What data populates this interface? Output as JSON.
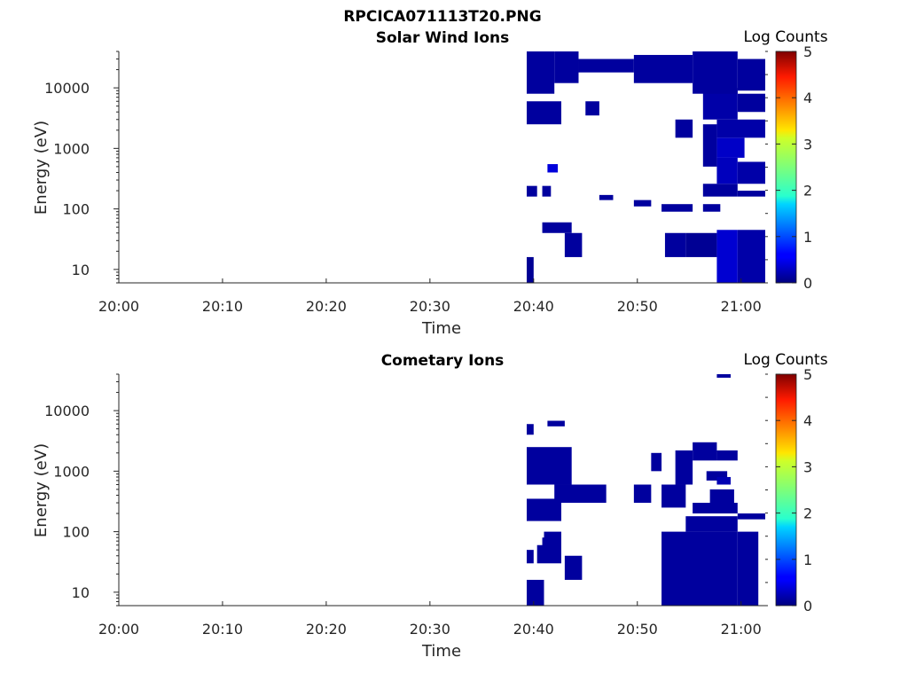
{
  "figure_title": "RPCICA071113T20.PNG",
  "chart_data": [
    {
      "type": "heatmap",
      "title": "Solar Wind Ions",
      "xlabel": "Time",
      "ylabel": "Energy (eV)",
      "y_scale": "log",
      "x_ticks": [
        "20:00",
        "20:10",
        "20:20",
        "20:30",
        "20:40",
        "20:50",
        "21:00"
      ],
      "y_ticks": [
        "10",
        "100",
        "1000",
        "10000"
      ],
      "colorbar": {
        "label": "Log Counts",
        "ticks": [
          "0",
          "1",
          "2",
          "3",
          "4",
          "5"
        ],
        "range": [
          0,
          5
        ],
        "colormap": "jet"
      },
      "cells": [
        [
          "20:39:20",
          "20:40:00",
          6,
          16,
          0.2
        ],
        [
          "20:40:50",
          "20:43:40",
          40,
          60,
          0.3
        ],
        [
          "20:43:00",
          "20:44:40",
          16,
          40,
          0.3
        ],
        [
          "20:39:20",
          "20:40:20",
          160,
          240,
          0.3
        ],
        [
          "20:40:50",
          "20:41:40",
          160,
          240,
          0.3
        ],
        [
          "20:52:20",
          "20:55:20",
          90,
          120,
          0.3
        ],
        [
          "20:54:40",
          "20:57:40",
          16,
          40,
          0.2
        ],
        [
          "20:57:40",
          "20:59:40",
          6,
          45,
          0.8
        ],
        [
          "20:59:40",
          "21:02:20",
          6,
          45,
          0.4
        ],
        [
          "20:52:40",
          "20:54:40",
          16,
          40,
          0.3
        ],
        [
          "20:56:20",
          "20:58:00",
          90,
          120,
          0.3
        ],
        [
          "20:49:40",
          "20:51:20",
          110,
          140,
          0.3
        ],
        [
          "20:56:20",
          "20:59:40",
          160,
          260,
          0.3
        ],
        [
          "20:59:40",
          "21:02:20",
          160,
          200,
          0.3
        ],
        [
          "20:57:40",
          "20:59:40",
          260,
          700,
          0.6
        ],
        [
          "20:59:40",
          "21:02:20",
          260,
          600,
          0.4
        ],
        [
          "20:57:40",
          "21:00:20",
          700,
          1500,
          0.7
        ],
        [
          "20:56:20",
          "20:57:40",
          500,
          2500,
          0.3
        ],
        [
          "20:57:40",
          "21:02:20",
          1500,
          3000,
          0.4
        ],
        [
          "20:56:20",
          "20:59:40",
          3000,
          10000,
          0.4
        ],
        [
          "20:59:40",
          "21:02:20",
          4000,
          8000,
          0.3
        ],
        [
          "20:39:20",
          "20:42:00",
          8000,
          40000,
          0.3
        ],
        [
          "20:42:00",
          "20:44:20",
          12000,
          40000,
          0.3
        ],
        [
          "20:44:20",
          "20:49:40",
          18000,
          30000,
          0.3
        ],
        [
          "20:49:40",
          "20:55:20",
          12000,
          35000,
          0.3
        ],
        [
          "20:55:20",
          "20:59:40",
          8000,
          40000,
          0.3
        ],
        [
          "20:59:40",
          "21:02:20",
          9000,
          30000,
          0.3
        ],
        [
          "20:39:20",
          "20:42:40",
          2500,
          6000,
          0.3
        ],
        [
          "20:45:00",
          "20:46:20",
          3500,
          6000,
          0.3
        ],
        [
          "20:53:40",
          "20:55:20",
          1500,
          3000,
          0.3
        ],
        [
          "20:41:20",
          "20:42:20",
          400,
          550,
          0.9
        ],
        [
          "20:46:20",
          "20:47:40",
          140,
          170,
          0.3
        ]
      ]
    },
    {
      "type": "heatmap",
      "title": "Cometary Ions",
      "xlabel": "Time",
      "ylabel": "Energy (eV)",
      "y_scale": "log",
      "x_ticks": [
        "20:00",
        "20:10",
        "20:20",
        "20:30",
        "20:40",
        "20:50",
        "21:00"
      ],
      "y_ticks": [
        "10",
        "100",
        "1000",
        "10000"
      ],
      "colorbar": {
        "label": "Log Counts",
        "ticks": [
          "0",
          "1",
          "2",
          "3",
          "4",
          "5"
        ],
        "range": [
          0,
          5
        ],
        "colormap": "jet"
      },
      "cells": [
        [
          "20:39:20",
          "20:41:00",
          6,
          16,
          0.3
        ],
        [
          "20:43:00",
          "20:44:40",
          16,
          40,
          0.3
        ],
        [
          "20:40:20",
          "20:42:40",
          30,
          60,
          0.3
        ],
        [
          "20:39:20",
          "20:40:00",
          30,
          50,
          0.3
        ],
        [
          "20:41:00",
          "20:42:40",
          60,
          100,
          0.3
        ],
        [
          "20:39:20",
          "20:42:40",
          150,
          350,
          0.3
        ],
        [
          "20:42:00",
          "20:47:00",
          300,
          600,
          0.3
        ],
        [
          "20:39:20",
          "20:43:40",
          600,
          2500,
          0.3
        ],
        [
          "20:52:20",
          "20:54:40",
          250,
          600,
          0.3
        ],
        [
          "20:53:40",
          "20:55:20",
          600,
          2200,
          0.3
        ],
        [
          "20:52:20",
          "20:59:40",
          6,
          100,
          0.3
        ],
        [
          "20:54:40",
          "20:59:40",
          100,
          180,
          0.3
        ],
        [
          "20:55:20",
          "20:59:40",
          200,
          300,
          0.3
        ],
        [
          "20:59:40",
          "21:01:40",
          6,
          100,
          0.3
        ],
        [
          "20:57:00",
          "20:59:20",
          250,
          500,
          0.3
        ],
        [
          "20:59:40",
          "21:02:20",
          160,
          200,
          0.3
        ],
        [
          "20:39:20",
          "20:40:00",
          4000,
          6000,
          0.3
        ],
        [
          "20:41:20",
          "20:43:00",
          5500,
          6800,
          0.3
        ],
        [
          "20:55:20",
          "20:57:40",
          1500,
          3000,
          0.3
        ],
        [
          "20:56:40",
          "20:58:40",
          700,
          1000,
          0.3
        ],
        [
          "20:57:40",
          "20:59:40",
          1500,
          2200,
          0.3
        ],
        [
          "20:57:40",
          "20:59:00",
          35000,
          40000,
          0.3
        ],
        [
          "20:49:40",
          "20:51:20",
          300,
          600,
          0.3
        ],
        [
          "20:51:20",
          "20:52:20",
          1000,
          2000,
          0.3
        ],
        [
          "20:57:40",
          "20:59:00",
          600,
          800,
          0.5
        ],
        [
          "20:55:20",
          "20:57:20",
          40,
          80,
          0.3
        ],
        [
          "20:40:50",
          "20:42:40",
          40,
          80,
          0.3
        ]
      ]
    }
  ]
}
